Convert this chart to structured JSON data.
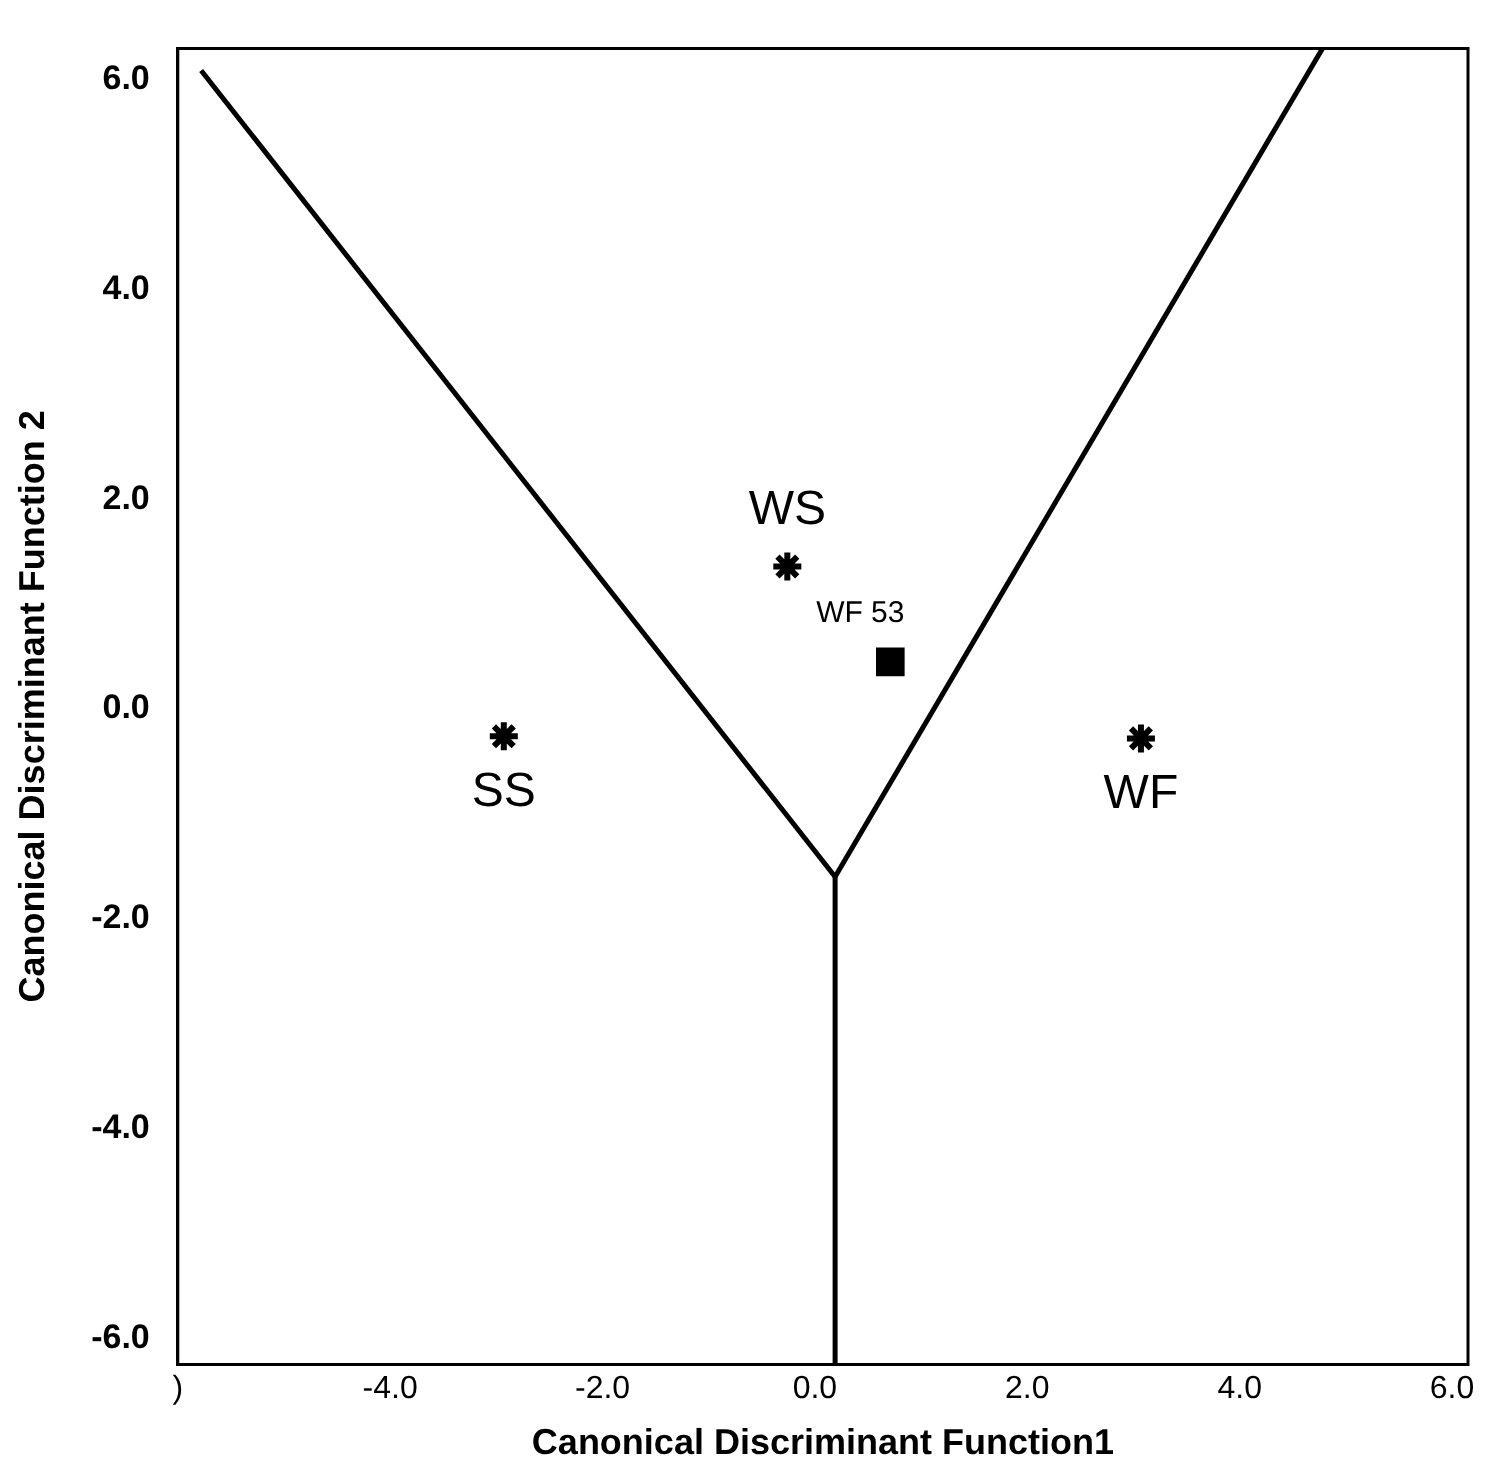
{
  "chart_data": {
    "type": "scatter",
    "xlabel": "Canonical Discriminant Function1",
    "ylabel": "Canonical Discriminant Function 2",
    "xlim": [
      -6,
      6.15
    ],
    "ylim": [
      -6.25,
      6.3
    ],
    "xticks": [
      {
        "value": -6,
        "label": ")"
      },
      {
        "value": -4,
        "label": "-4.0"
      },
      {
        "value": -2,
        "label": "-2.0"
      },
      {
        "value": 0,
        "label": "0.0"
      },
      {
        "value": 2,
        "label": "2.0"
      },
      {
        "value": 4,
        "label": "4.0"
      },
      {
        "value": 6,
        "label": "6.0"
      }
    ],
    "yticks": [
      {
        "value": -6,
        "label": "-6.0"
      },
      {
        "value": -4,
        "label": "-4.0"
      },
      {
        "value": -2,
        "label": "-2.0"
      },
      {
        "value": 0,
        "label": "0.0"
      },
      {
        "value": 2,
        "label": "2.0"
      },
      {
        "value": 4,
        "label": "4.0"
      },
      {
        "value": 6,
        "label": "6.0"
      }
    ],
    "grid": false,
    "legend": false,
    "series": [
      {
        "type": "scatter",
        "marker": "cross",
        "color": "#000000",
        "x": [
          -2.93,
          -0.26,
          3.07
        ],
        "values": [
          -0.26,
          1.36,
          -0.28
        ]
      },
      {
        "type": "scatter",
        "marker": "square",
        "color": "#000000",
        "x": [
          0.71
        ],
        "values": [
          0.45
        ]
      },
      {
        "type": "line",
        "marker": "none",
        "line_style": "solid",
        "color": "#000000",
        "x": [
          -5.78,
          0.19
        ],
        "values": [
          6.09,
          -1.6
        ]
      },
      {
        "type": "line",
        "marker": "none",
        "line_style": "solid",
        "color": "#000000",
        "x": [
          4.78,
          0.19
        ],
        "values": [
          6.3,
          -1.6
        ]
      },
      {
        "type": "line",
        "marker": "none",
        "line_style": "solid",
        "color": "#000000",
        "x": [
          0.19,
          0.19
        ],
        "values": [
          -1.6,
          -6.25
        ]
      }
    ],
    "annotations": [
      {
        "text": "SS",
        "x": -2.93,
        "y": -0.26
      },
      {
        "text": "WS",
        "x": -0.26,
        "y": 1.36
      },
      {
        "text": "WF",
        "x": 3.07,
        "y": -0.28
      },
      {
        "text": "WF 53",
        "x": 0.71,
        "y": 0.45
      }
    ]
  }
}
